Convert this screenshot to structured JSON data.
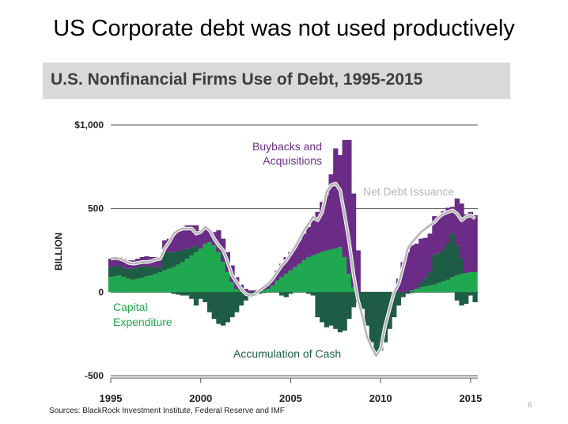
{
  "slide": {
    "title": "US Corporate debt was not used productively",
    "page_number": "6"
  },
  "chart_data": {
    "type": "area",
    "title": "U.S. Nonfinancial Firms Use of Debt, 1995-2015",
    "source": "Sources: BlackRock Investment Institute, Federal Reserve and IMF",
    "ylabel": "BILLION",
    "ylim": [
      -500,
      1000
    ],
    "yticks": [
      -500,
      0,
      500,
      1000
    ],
    "ytick_labels": [
      "-500",
      "0",
      "500",
      "$1,000"
    ],
    "xlim": [
      1995,
      2015.4
    ],
    "xticks": [
      1995,
      2000,
      2005,
      2010,
      2015
    ],
    "xtick_labels": [
      "1995",
      "2000",
      "2005",
      "2010",
      "2015"
    ],
    "grid": "horizontal",
    "colors": {
      "capex": "#1fa84f",
      "cash": "#1e5c45",
      "buybacks": "#6a2c86",
      "net_debt": "#b5b5b5"
    },
    "annotations": [
      {
        "text": "Buybacks and",
        "series": "buybacks"
      },
      {
        "text": "Acquisitions",
        "series": "buybacks"
      },
      {
        "text": "Net Debt Issuance",
        "series": "net_debt"
      },
      {
        "text": "Capital",
        "series": "capex"
      },
      {
        "text": "Expenditure",
        "series": "capex"
      },
      {
        "text": "Accumulation of Cash",
        "series": "cash"
      }
    ],
    "x": [
      1995,
      1995.25,
      1995.5,
      1995.75,
      1996,
      1996.25,
      1996.5,
      1996.75,
      1997,
      1997.25,
      1997.5,
      1997.75,
      1998,
      1998.25,
      1998.5,
      1998.75,
      1999,
      1999.25,
      1999.5,
      1999.75,
      2000,
      2000.25,
      2000.5,
      2000.75,
      2001,
      2001.25,
      2001.5,
      2001.75,
      2002,
      2002.25,
      2002.5,
      2002.75,
      2003,
      2003.25,
      2003.5,
      2003.75,
      2004,
      2004.25,
      2004.5,
      2004.75,
      2005,
      2005.25,
      2005.5,
      2005.75,
      2006,
      2006.25,
      2006.5,
      2006.75,
      2007,
      2007.25,
      2007.5,
      2007.75,
      2008,
      2008.25,
      2008.5,
      2008.75,
      2009,
      2009.25,
      2009.5,
      2009.75,
      2010,
      2010.25,
      2010.5,
      2010.75,
      2011,
      2011.25,
      2011.5,
      2011.75,
      2012,
      2012.25,
      2012.5,
      2012.75,
      2013,
      2013.25,
      2013.5,
      2013.75,
      2014,
      2014.25,
      2014.5,
      2014.75,
      2015,
      2015.25
    ],
    "series": [
      {
        "key": "capex",
        "name": "Capital Expenditure",
        "values": [
          90,
          95,
          100,
          90,
          80,
          75,
          80,
          85,
          95,
          100,
          110,
          120,
          130,
          140,
          150,
          165,
          180,
          200,
          220,
          240,
          260,
          290,
          300,
          280,
          240,
          180,
          120,
          60,
          20,
          5,
          0,
          0,
          0,
          5,
          10,
          20,
          40,
          70,
          90,
          110,
          130,
          150,
          170,
          190,
          210,
          220,
          230,
          240,
          250,
          255,
          260,
          270,
          210,
          110,
          30,
          0,
          0,
          0,
          0,
          0,
          0,
          0,
          0,
          0,
          0,
          0,
          0,
          10,
          20,
          30,
          35,
          40,
          45,
          55,
          65,
          75,
          90,
          100,
          110,
          115,
          120,
          120
        ]
      },
      {
        "key": "cash",
        "name": "Accumulation of Cash",
        "pos": [
          60,
          60,
          60,
          55,
          60,
          65,
          70,
          70,
          60,
          50,
          40,
          30,
          110,
          100,
          90,
          80,
          70,
          60,
          50,
          40,
          0,
          0,
          0,
          0,
          0,
          0,
          0,
          0,
          0,
          0,
          0,
          0,
          0,
          0,
          0,
          0,
          0,
          0,
          0,
          0,
          0,
          0,
          0,
          0,
          0,
          0,
          0,
          0,
          0,
          0,
          0,
          0,
          0,
          0,
          0,
          0,
          0,
          0,
          0,
          0,
          0,
          0,
          0,
          0,
          0,
          0,
          0,
          0,
          0,
          30,
          50,
          80,
          180,
          180,
          190,
          220,
          260,
          180,
          90,
          0,
          0,
          0
        ],
        "neg": [
          0,
          0,
          0,
          0,
          0,
          0,
          0,
          0,
          0,
          0,
          0,
          0,
          0,
          0,
          -10,
          -15,
          -20,
          -20,
          -40,
          -80,
          -40,
          -60,
          -120,
          -160,
          -190,
          -200,
          -180,
          -150,
          -120,
          -80,
          -50,
          -30,
          -20,
          -10,
          -5,
          0,
          0,
          0,
          -20,
          -30,
          -10,
          0,
          0,
          0,
          -10,
          -20,
          -150,
          -180,
          -210,
          -200,
          -220,
          -240,
          -230,
          -160,
          -90,
          -60,
          -100,
          -200,
          -300,
          -380,
          -350,
          -300,
          -220,
          -150,
          -80,
          -30,
          -10,
          -5,
          0,
          0,
          0,
          0,
          0,
          0,
          0,
          0,
          0,
          -50,
          -80,
          -70,
          -20,
          -60
        ]
      },
      {
        "key": "buybacks",
        "name": "Buybacks and Acquisitions",
        "values": [
          50,
          50,
          50,
          55,
          50,
          50,
          50,
          55,
          60,
          60,
          60,
          60,
          70,
          80,
          100,
          120,
          130,
          140,
          130,
          120,
          110,
          90,
          70,
          80,
          130,
          140,
          120,
          100,
          70,
          40,
          20,
          10,
          10,
          10,
          20,
          30,
          40,
          60,
          80,
          100,
          110,
          120,
          140,
          160,
          180,
          210,
          250,
          300,
          330,
          450,
          600,
          550,
          700,
          800,
          560,
          250,
          0,
          0,
          0,
          0,
          0,
          0,
          0,
          0,
          80,
          180,
          240,
          270,
          270,
          260,
          240,
          230,
          230,
          210,
          230,
          210,
          160,
          280,
          330,
          350,
          360,
          340
        ]
      },
      {
        "key": "net_debt",
        "name": "Net Debt Issuance",
        "values": [
          200,
          205,
          200,
          190,
          175,
          170,
          175,
          180,
          180,
          185,
          195,
          200,
          260,
          300,
          350,
          370,
          380,
          380,
          380,
          350,
          360,
          390,
          370,
          320,
          280,
          250,
          180,
          100,
          60,
          20,
          -10,
          -20,
          -15,
          10,
          30,
          50,
          80,
          120,
          160,
          190,
          230,
          270,
          320,
          370,
          410,
          450,
          430,
          480,
          600,
          640,
          650,
          610,
          460,
          300,
          100,
          -50,
          -150,
          -270,
          -330,
          -380,
          -340,
          -200,
          -100,
          0,
          50,
          150,
          260,
          300,
          330,
          360,
          380,
          400,
          420,
          450,
          470,
          480,
          490,
          470,
          430,
          450,
          460,
          440
        ]
      }
    ]
  }
}
